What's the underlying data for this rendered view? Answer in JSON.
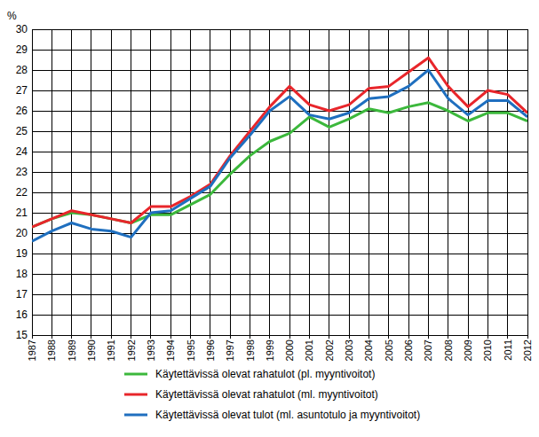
{
  "chart_data": {
    "type": "line",
    "ylabel": "%",
    "categories": [
      "1987",
      "1988",
      "1989",
      "1990",
      "1991",
      "1992",
      "1993",
      "1994",
      "1995",
      "1996",
      "1997",
      "1998",
      "1999",
      "2000",
      "2001",
      "2002",
      "2003",
      "2004",
      "2005",
      "2006",
      "2007",
      "2008",
      "2009",
      "2010",
      "2011",
      "2012"
    ],
    "series": [
      {
        "name": "Käytettävissä olevat rahatulot (pl. myyntivoitot)",
        "color": "#3cb83c",
        "values": [
          20.3,
          20.7,
          21.0,
          20.9,
          20.7,
          20.5,
          20.9,
          20.9,
          21.4,
          21.9,
          22.9,
          23.8,
          24.5,
          24.9,
          25.7,
          25.2,
          25.6,
          26.1,
          25.9,
          26.2,
          26.4,
          26.0,
          25.5,
          25.9,
          25.9,
          25.5
        ]
      },
      {
        "name": "Käytettävissä olevat rahatulot (ml. myyntivoitot)",
        "color": "#e8262b",
        "values": [
          20.3,
          20.7,
          21.1,
          20.9,
          20.7,
          20.5,
          21.3,
          21.3,
          21.8,
          22.4,
          23.8,
          25.0,
          26.2,
          27.2,
          26.3,
          26.0,
          26.3,
          27.1,
          27.2,
          27.9,
          28.6,
          27.2,
          26.2,
          27.0,
          26.8,
          25.9
        ]
      },
      {
        "name": "Käytettävissä olevat tulot  (ml. asuntotulo ja myyntivoitot)",
        "color": "#1f6fbf",
        "values": [
          19.6,
          20.1,
          20.5,
          20.2,
          20.1,
          19.8,
          21.0,
          21.1,
          21.7,
          22.3,
          23.7,
          24.8,
          26.0,
          26.7,
          25.8,
          25.6,
          25.9,
          26.6,
          26.7,
          27.2,
          28.0,
          26.6,
          25.8,
          26.5,
          26.5,
          25.7
        ]
      }
    ],
    "ylim": [
      15,
      30
    ],
    "yticks": [
      15,
      16,
      17,
      18,
      19,
      20,
      21,
      22,
      23,
      24,
      25,
      26,
      27,
      28,
      29,
      30
    ],
    "grid": true,
    "legend": "bottom"
  }
}
